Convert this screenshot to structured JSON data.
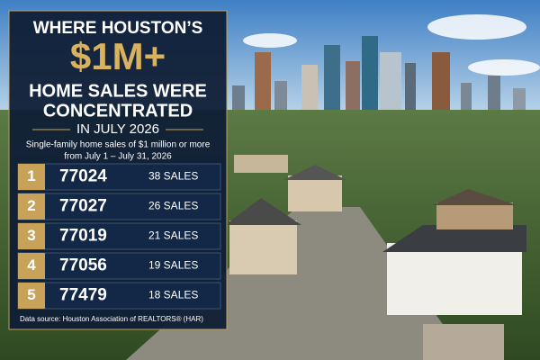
{
  "header": {
    "title_line1": "WHERE HOUSTON’S",
    "title_highlight": "$1M+",
    "title_line2": "HOME SALES WERE",
    "title_line3": "CONCENTRATED",
    "title_line4": "IN JULY 2026",
    "subtitle_line1": "Single-family home sales of $1 million or more",
    "subtitle_line2": "from July 1 – July 31, 2026"
  },
  "table": {
    "rows": [
      [
        "1",
        "77024",
        "38 SALES"
      ],
      [
        "2",
        "77027",
        "26 SALES"
      ],
      [
        "3",
        "77019",
        "21 SALES"
      ],
      [
        "4",
        "77056",
        "19 SALES"
      ],
      [
        "5",
        "77479",
        "18 SALES"
      ]
    ]
  },
  "footer": {
    "source": "Data source: Houston Association of REALTORS® (HAR)"
  }
}
